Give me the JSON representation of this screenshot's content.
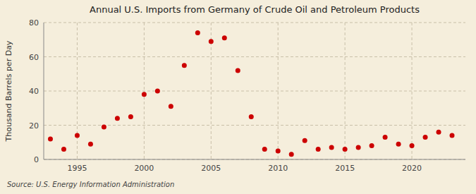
{
  "chart_data": {
    "type": "scatter",
    "title": "Annual U.S. Imports from Germany of Crude Oil and Petroleum Products",
    "ylabel": "Thousand Barrels per Day",
    "annotations": [
      "Source: U.S. Energy Information Administration"
    ],
    "color": "#cc0000",
    "x": [
      1993,
      1994,
      1995,
      1996,
      1997,
      1998,
      1999,
      2000,
      2001,
      2002,
      2003,
      2004,
      2005,
      2006,
      2007,
      2008,
      2009,
      2010,
      2011,
      2012,
      2013,
      2014,
      2015,
      2016,
      2017,
      2018,
      2019,
      2020,
      2021,
      2022,
      2023
    ],
    "values": [
      12,
      6,
      14,
      9,
      19,
      24,
      25,
      38,
      40,
      31,
      55,
      74,
      69,
      71,
      52,
      25,
      6,
      5,
      3,
      11,
      6,
      7,
      6,
      7,
      8,
      13,
      9,
      8,
      13,
      16,
      14
    ],
    "xlim": [
      1992.5,
      2024
    ],
    "xticks": [
      1995,
      2000,
      2005,
      2010,
      2015,
      2020
    ],
    "ylim": [
      0,
      80
    ],
    "yticks": [
      0,
      20,
      40,
      60,
      80
    ],
    "grid": true
  }
}
